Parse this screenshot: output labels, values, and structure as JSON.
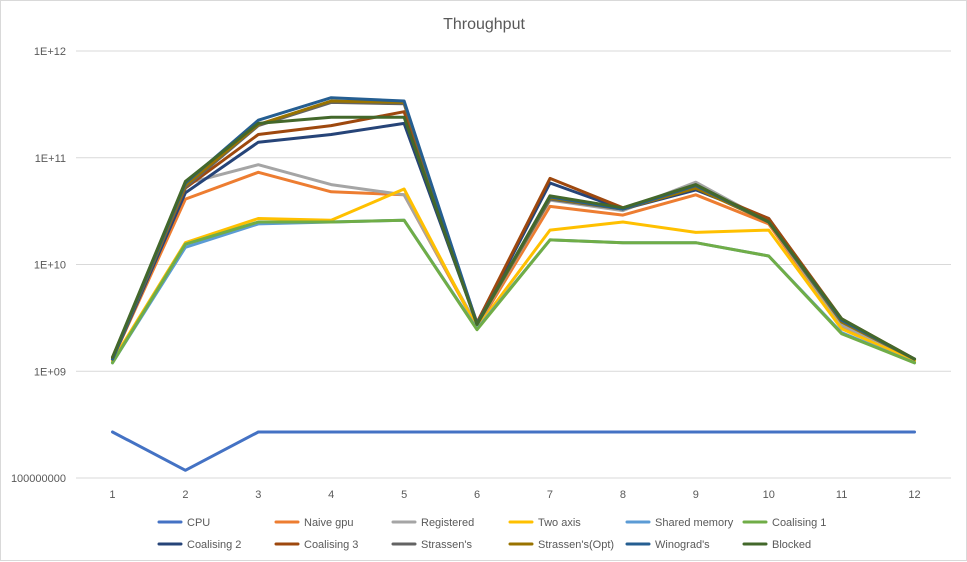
{
  "chart_data": {
    "type": "line",
    "title": "Throughput",
    "xlabel": "",
    "ylabel": "",
    "y_scale": "log",
    "ylim": [
      100000000,
      1000000000000
    ],
    "y_ticks": [
      {
        "value": 1000000000000,
        "label": "1E+12"
      },
      {
        "value": 100000000000,
        "label": "1E+11"
      },
      {
        "value": 10000000000,
        "label": "1E+10"
      },
      {
        "value": 1000000000,
        "label": "1E+09"
      },
      {
        "value": 100000000,
        "label": "100000000"
      }
    ],
    "grid": "horizontal",
    "legend_position": "bottom",
    "categories": [
      "1",
      "2",
      "3",
      "4",
      "5",
      "6",
      "7",
      "8",
      "9",
      "10",
      "11",
      "12"
    ],
    "series": [
      {
        "name": "CPU",
        "color": "#4472C4",
        "values": [
          270000000,
          118000000,
          270000000,
          270000000,
          270000000,
          270000000,
          270000000,
          270000000,
          270000000,
          270000000,
          270000000,
          270000000
        ]
      },
      {
        "name": "Naive gpu",
        "color": "#ED7D31",
        "values": [
          1300000000,
          41000000000,
          73000000000,
          48000000000,
          45000000000,
          2600000000,
          35000000000,
          29000000000,
          45000000000,
          24000000000,
          2600000000,
          1250000000
        ]
      },
      {
        "name": "Registered",
        "color": "#A5A5A5",
        "values": [
          1300000000,
          57000000000,
          86000000000,
          56000000000,
          45000000000,
          2700000000,
          40000000000,
          32000000000,
          59000000000,
          25000000000,
          2700000000,
          1300000000
        ]
      },
      {
        "name": "Two axis",
        "color": "#FFC000",
        "values": [
          1250000000,
          16000000000,
          27000000000,
          26000000000,
          51000000000,
          2550000000,
          21000000000,
          25000000000,
          20000000000,
          21000000000,
          2500000000,
          1250000000
        ]
      },
      {
        "name": "Shared memory",
        "color": "#5B9BD5",
        "values": [
          1200000000,
          14500000000,
          24000000000,
          25000000000,
          26000000000,
          2500000000,
          17000000000,
          16000000000,
          16000000000,
          12000000000,
          2300000000,
          1200000000
        ]
      },
      {
        "name": "Coalising 1",
        "color": "#70AD47",
        "values": [
          1200000000,
          15500000000,
          25000000000,
          25000000000,
          26000000000,
          2450000000,
          17000000000,
          16000000000,
          16000000000,
          12000000000,
          2250000000,
          1200000000
        ]
      },
      {
        "name": "Coalising 2",
        "color": "#264478",
        "values": [
          1300000000,
          47000000000,
          140000000000,
          165000000000,
          210000000000,
          2800000000,
          58000000000,
          33000000000,
          50000000000,
          27000000000,
          3000000000,
          1300000000
        ]
      },
      {
        "name": "Coalising 3",
        "color": "#9E480E",
        "values": [
          1350000000,
          52000000000,
          165000000000,
          200000000000,
          270000000000,
          2850000000,
          64000000000,
          34000000000,
          52000000000,
          27000000000,
          3100000000,
          1300000000
        ]
      },
      {
        "name": "Strassen's",
        "color": "#636363",
        "values": [
          1300000000,
          53000000000,
          200000000000,
          330000000000,
          320000000000,
          2750000000,
          41000000000,
          33000000000,
          54000000000,
          25000000000,
          2900000000,
          1300000000
        ]
      },
      {
        "name": "Strassen's(Opt)",
        "color": "#997300",
        "values": [
          1300000000,
          55000000000,
          205000000000,
          340000000000,
          330000000000,
          2750000000,
          42000000000,
          33000000000,
          52000000000,
          25000000000,
          2900000000,
          1300000000
        ]
      },
      {
        "name": "Winograd's",
        "color": "#255E91",
        "values": [
          1300000000,
          58000000000,
          225000000000,
          365000000000,
          340000000000,
          2800000000,
          43000000000,
          33000000000,
          55000000000,
          25000000000,
          3000000000,
          1300000000
        ]
      },
      {
        "name": "Blocked",
        "color": "#43682B",
        "values": [
          1350000000,
          60000000000,
          210000000000,
          240000000000,
          240000000000,
          2750000000,
          44000000000,
          34000000000,
          56000000000,
          25000000000,
          3100000000,
          1300000000
        ]
      }
    ]
  }
}
